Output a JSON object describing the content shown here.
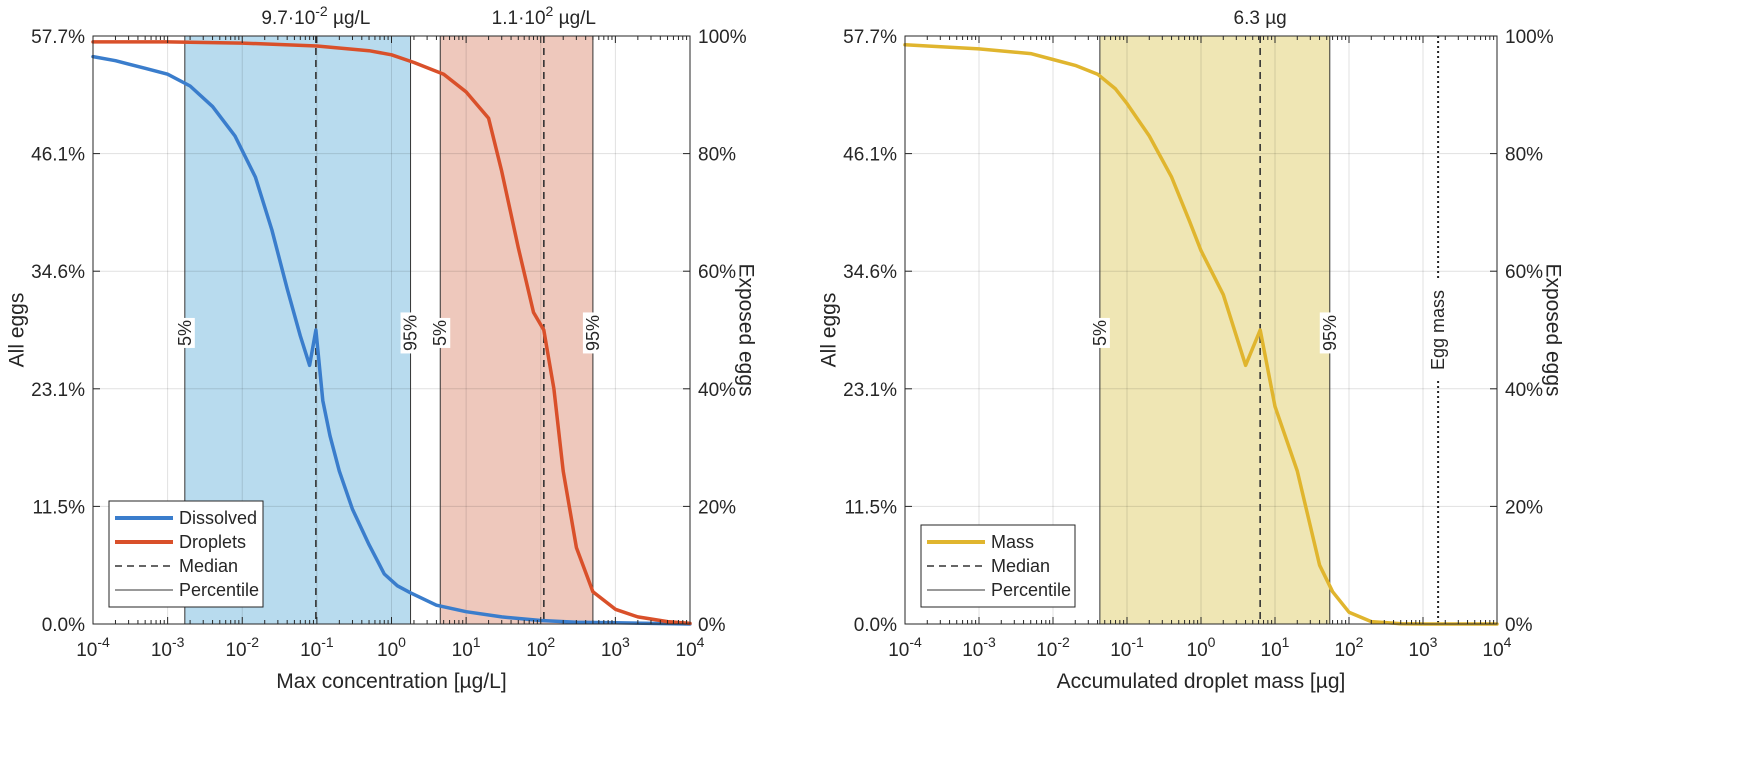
{
  "chart_data": [
    {
      "type": "line",
      "xlabel": "Max concentration [µg/L]",
      "ylabel_left": "All eggs",
      "ylabel_right": "Exposed eggs",
      "x_scale": "log",
      "xlim": [
        0.0001,
        10000
      ],
      "x_ticks": [
        "10-4",
        "10-3",
        "10-2",
        "10-1",
        "100",
        "101",
        "102",
        "103",
        "104"
      ],
      "ylim_left": [
        0,
        57.7
      ],
      "ylim_right": [
        0,
        100
      ],
      "y_ticks_left": [
        "0.0%",
        "11.5%",
        "23.1%",
        "34.6%",
        "46.1%",
        "57.7%"
      ],
      "y_ticks_right": [
        "0%",
        "20%",
        "40%",
        "60%",
        "80%",
        "100%"
      ],
      "grid": true,
      "legend_position": "bottom-left",
      "legend": [
        {
          "label": "Dissolved",
          "style": "solid-thick",
          "color": "#3a7dcc"
        },
        {
          "label": "Droplets",
          "style": "solid-thick",
          "color": "#d9502a"
        },
        {
          "label": "Median",
          "style": "dashed",
          "color": "#333333"
        },
        {
          "label": "Percentile",
          "style": "solid-thin",
          "color": "#333333"
        }
      ],
      "series": [
        {
          "name": "Dissolved",
          "color": "#3a7dcc",
          "x": [
            0.0001,
            0.0002,
            0.0005,
            0.001,
            0.002,
            0.004,
            0.008,
            0.015,
            0.025,
            0.04,
            0.06,
            0.08,
            0.097,
            0.12,
            0.15,
            0.2,
            0.3,
            0.5,
            0.8,
            1.2,
            1.8,
            4,
            10,
            30,
            100,
            300,
            1000,
            10000
          ],
          "y": [
            96.5,
            95.8,
            94.5,
            93.5,
            91.5,
            88,
            83,
            76,
            67,
            57,
            49,
            44,
            50,
            38,
            32,
            26,
            19.5,
            13.5,
            8.5,
            6.5,
            5.3,
            3.2,
            2.1,
            1.2,
            0.6,
            0.3,
            0.2,
            0.0
          ]
        },
        {
          "name": "Droplets",
          "color": "#d9502a",
          "x": [
            0.0001,
            0.001,
            0.01,
            0.1,
            0.5,
            1,
            2,
            5,
            10,
            20,
            30,
            50,
            80,
            110,
            150,
            200,
            300,
            500,
            1000,
            2000,
            5000,
            10000
          ],
          "y": [
            99,
            99,
            98.8,
            98.3,
            97.5,
            96.8,
            95.5,
            93.5,
            90.5,
            86,
            77,
            64,
            53,
            50,
            40,
            26,
            13,
            5.5,
            2.5,
            1.2,
            0.4,
            0.1
          ]
        }
      ],
      "median_lines": [
        {
          "x": 0.097,
          "label": "9.7·10-2 µg/L"
        },
        {
          "x": 110,
          "label": "1.1·102 µg/L"
        }
      ],
      "percentile_bands": [
        {
          "x_low": 0.0017,
          "x_high": 1.8,
          "label_low": "5%",
          "label_high": "95%",
          "color": "#b8dbee"
        },
        {
          "x_low": 4.5,
          "x_high": 500,
          "label_low": "5%",
          "label_high": "95%",
          "color": "#eec8bc"
        }
      ],
      "top_label_1_main": "9.7·10",
      "top_label_1_exp": "-2",
      "top_label_1_unit": " µg/L",
      "top_label_2_main": "1.1·10",
      "top_label_2_exp": "2",
      "top_label_2_unit": " µg/L"
    },
    {
      "type": "line",
      "xlabel": "Accumulated droplet mass [µg]",
      "ylabel_left": "All eggs",
      "ylabel_right": "Exposed eggs",
      "x_scale": "log",
      "xlim": [
        0.0001,
        10000
      ],
      "x_ticks": [
        "10-4",
        "10-3",
        "10-2",
        "10-1",
        "100",
        "101",
        "102",
        "103",
        "104"
      ],
      "ylim_left": [
        0,
        57.7
      ],
      "ylim_right": [
        0,
        100
      ],
      "y_ticks_left": [
        "0.0%",
        "11.5%",
        "23.1%",
        "34.6%",
        "46.1%",
        "57.7%"
      ],
      "y_ticks_right": [
        "0%",
        "20%",
        "40%",
        "60%",
        "80%",
        "100%"
      ],
      "grid": true,
      "legend_position": "bottom-left",
      "legend": [
        {
          "label": "Mass",
          "style": "solid-thick",
          "color": "#e0b52e"
        },
        {
          "label": "Median",
          "style": "dashed",
          "color": "#333333"
        },
        {
          "label": "Percentile",
          "style": "solid-thin",
          "color": "#333333"
        }
      ],
      "series": [
        {
          "name": "Mass",
          "color": "#e0b52e",
          "x": [
            0.0001,
            0.001,
            0.005,
            0.01,
            0.02,
            0.04,
            0.07,
            0.1,
            0.2,
            0.4,
            0.7,
            1,
            2,
            4,
            6.3,
            10,
            20,
            40,
            60,
            100,
            200,
            500,
            1000,
            10000
          ],
          "y": [
            98.5,
            97.8,
            97,
            96,
            95,
            93.5,
            91,
            88.5,
            83,
            76,
            68.5,
            63.5,
            56,
            44,
            50,
            37,
            26,
            10,
            5.5,
            2.0,
            0.4,
            0.05,
            0.0,
            0.0
          ]
        }
      ],
      "median_lines": [
        {
          "x": 6.3,
          "label": "6.3 µg"
        }
      ],
      "percentile_bands": [
        {
          "x_low": 0.043,
          "x_high": 55,
          "label_low": "5%",
          "label_high": "95%",
          "color": "#efe6b4"
        }
      ],
      "egg_mass_line": {
        "x": 1600,
        "label": "Egg mass"
      },
      "top_label_1_main": "6.3 µg"
    }
  ]
}
